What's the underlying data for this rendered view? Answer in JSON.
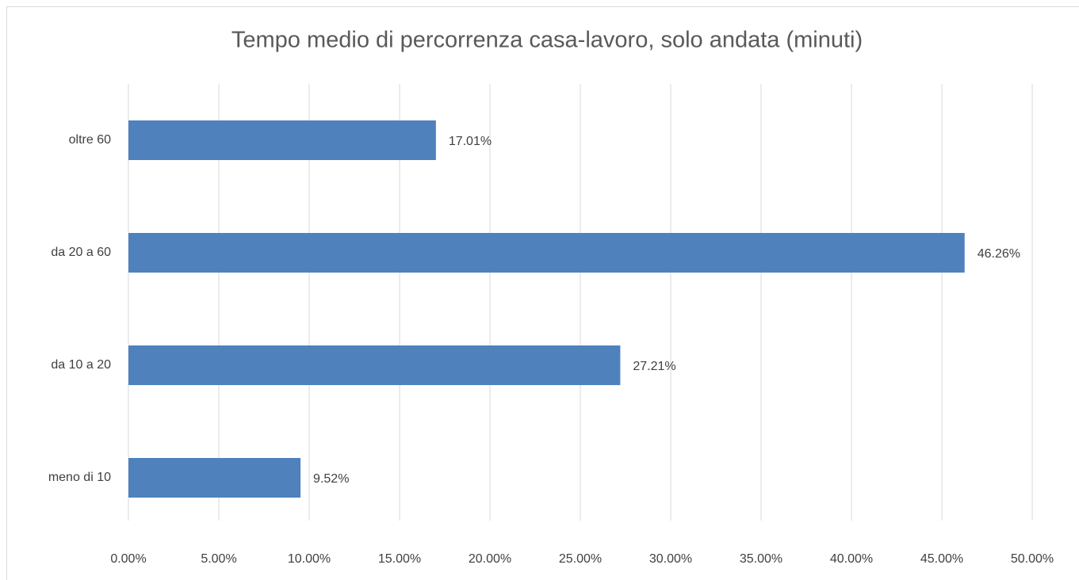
{
  "chart_data": {
    "type": "bar",
    "orientation": "horizontal",
    "title": "Tempo medio di percorrenza casa-lavoro, solo andata (minuti)",
    "categories": [
      "meno di 10",
      "da 10 a 20",
      "da 20 a 60",
      "oltre 60"
    ],
    "values": [
      9.52,
      27.21,
      46.26,
      17.01
    ],
    "value_labels": [
      "9.52%",
      "27.21%",
      "46.26%",
      "17.01%"
    ],
    "color": "#4f81bd",
    "xlim": [
      0,
      50
    ],
    "xticks": [
      {
        "value": 0,
        "label": "0.00%"
      },
      {
        "value": 5,
        "label": "5.00%"
      },
      {
        "value": 10,
        "label": "10.00%"
      },
      {
        "value": 15,
        "label": "15.00%"
      },
      {
        "value": 20,
        "label": "20.00%"
      },
      {
        "value": 25,
        "label": "25.00%"
      },
      {
        "value": 30,
        "label": "30.00%"
      },
      {
        "value": 35,
        "label": "35.00%"
      },
      {
        "value": 40,
        "label": "40.00%"
      },
      {
        "value": 45,
        "label": "45.00%"
      },
      {
        "value": 50,
        "label": "50.00%"
      }
    ],
    "grid": true
  }
}
